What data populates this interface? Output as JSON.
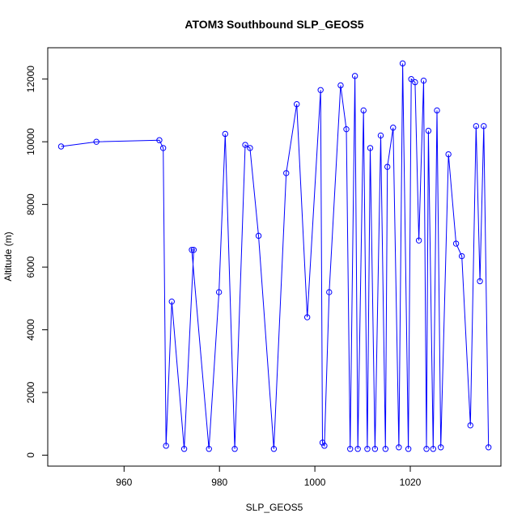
{
  "chart_data": {
    "type": "line",
    "title": "ATOM3 Southbound SLP_GEOS5",
    "xlabel": "SLP_GEOS5",
    "ylabel": "Altitude (m)",
    "xlim": [
      944,
      1039
    ],
    "ylim": [
      -350,
      13000
    ],
    "xticks": [
      960,
      980,
      1000,
      1020
    ],
    "yticks": [
      0,
      2000,
      4000,
      6000,
      8000,
      10000,
      12000
    ],
    "grid": false,
    "legend": "none",
    "marker": "open-circle",
    "color": "#0000ff",
    "series": [
      {
        "x": [
          946.8,
          954.2,
          967.4,
          968.2,
          968.8,
          970.0,
          972.6,
          974.6,
          974.2,
          977.8,
          979.9,
          981.2,
          983.2,
          985.4,
          986.4,
          988.2,
          991.4,
          994.0,
          996.2,
          998.4,
          1001.2,
          1001.6,
          1002.0,
          1003.0,
          1005.4,
          1006.6,
          1007.4,
          1008.4,
          1009.0,
          1010.2,
          1011.0,
          1011.6,
          1012.6,
          1013.8,
          1014.8,
          1015.2,
          1016.4,
          1017.6,
          1018.4,
          1019.6,
          1020.2,
          1021.0,
          1021.8,
          1022.8,
          1023.4,
          1023.8,
          1024.8,
          1025.6,
          1026.4,
          1028.0,
          1029.6,
          1030.8,
          1032.6,
          1033.8,
          1034.6,
          1035.4,
          1036.4
        ],
        "y": [
          9850,
          10000,
          10050,
          9800,
          300,
          4900,
          200,
          6550,
          6550,
          200,
          5200,
          10250,
          200,
          9900,
          9800,
          7000,
          200,
          9000,
          11200,
          4400,
          11650,
          400,
          300,
          5200,
          11800,
          10400,
          200,
          12100,
          200,
          11000,
          200,
          9800,
          200,
          10200,
          200,
          9200,
          10450,
          250,
          12500,
          200,
          12000,
          11900,
          6850,
          11950,
          200,
          10350,
          200,
          11000,
          250,
          9600,
          6750,
          6350,
          950,
          10500,
          5550,
          10500,
          250
        ]
      }
    ]
  }
}
